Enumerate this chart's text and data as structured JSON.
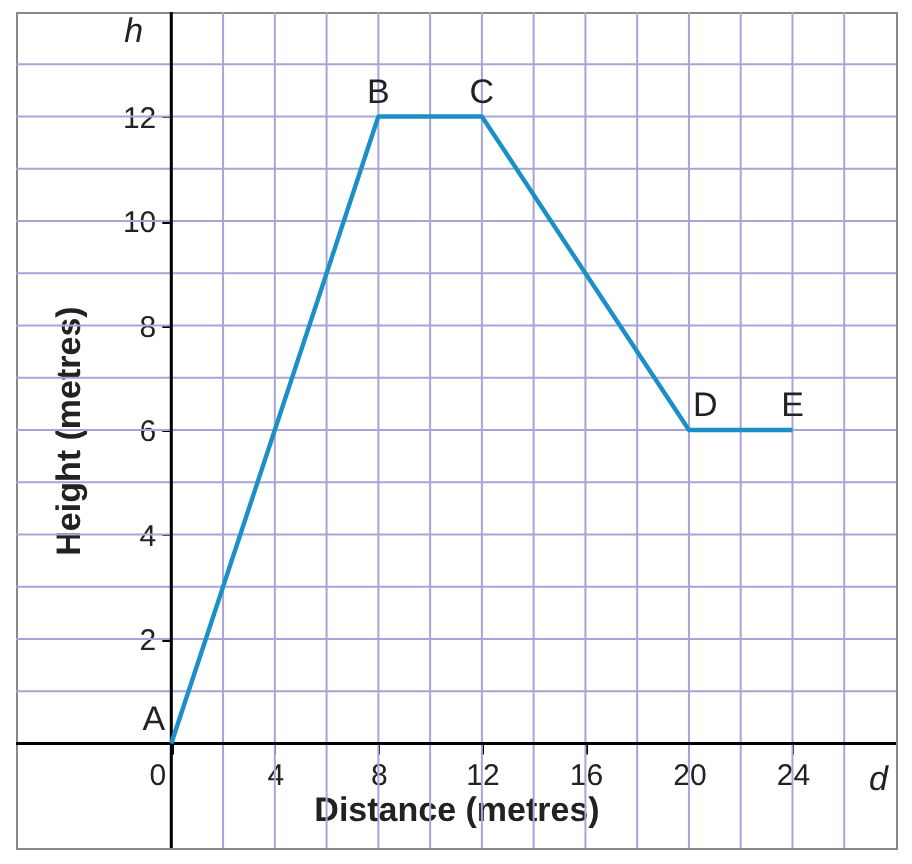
{
  "chart_data": {
    "type": "line",
    "xlabel": "Distance (metres)",
    "ylabel": "Height (metres)",
    "x": [
      0,
      8,
      12,
      20,
      24
    ],
    "series": [
      {
        "color": "#1b8fc6",
        "values": [
          0,
          12,
          12,
          6,
          6
        ]
      }
    ],
    "xlim": [
      -6,
      28
    ],
    "ylim": [
      -2,
      14
    ],
    "xticks": [
      0,
      {
        "value": 2,
        "label": null
      },
      4,
      {
        "value": 6,
        "label": null
      },
      8,
      {
        "value": 10,
        "label": null
      },
      12,
      {
        "value": 14,
        "label": null
      },
      16,
      {
        "value": 18,
        "label": null
      },
      20,
      {
        "value": 22,
        "label": null
      },
      24,
      {
        "value": 26,
        "label": null
      }
    ],
    "yticks": [
      {
        "value": 1,
        "label": null
      },
      2,
      {
        "value": 3,
        "label": null
      },
      4,
      {
        "value": 5,
        "label": null
      },
      6,
      {
        "value": 7,
        "label": null
      },
      8,
      {
        "value": 9,
        "label": null
      },
      10,
      {
        "value": 11,
        "label": null
      },
      12,
      {
        "value": 13,
        "label": null
      }
    ],
    "grid": true,
    "marker": "none",
    "line_style": "solid",
    "annotations": [
      {
        "text": "A",
        "x": 0,
        "y": 0
      },
      {
        "text": "B",
        "x": 8,
        "y": 12
      },
      {
        "text": "C",
        "x": 12,
        "y": 12
      },
      {
        "text": "D",
        "x": 20,
        "y": 6
      },
      {
        "text": "E",
        "x": 24,
        "y": 6
      },
      "h",
      "d"
    ]
  }
}
